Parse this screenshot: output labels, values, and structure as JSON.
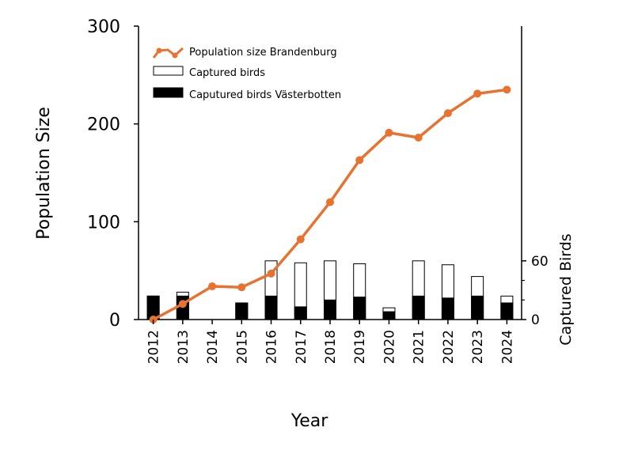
{
  "chart_data": {
    "type": "bar",
    "categories": [
      "2012",
      "2013",
      "2014",
      "2015",
      "2016",
      "2017",
      "2018",
      "2019",
      "2020",
      "2021",
      "2022",
      "2023",
      "2024"
    ],
    "line_series": {
      "name": "Population size Brandenburg",
      "axis": "left",
      "color": "#E87330",
      "values": [
        0,
        16,
        34,
        33,
        47,
        82,
        120,
        163,
        191,
        186,
        211,
        231,
        235
      ]
    },
    "bar_series": [
      {
        "name": "Captured birds",
        "axis": "right",
        "fill": "#ffffff",
        "stroke": "#000000",
        "values": [
          24,
          28,
          0,
          17,
          60,
          58,
          60,
          57,
          12,
          60,
          56,
          44,
          24
        ]
      },
      {
        "name": "Caputured birds Västerbotten",
        "axis": "right",
        "fill": "#000000",
        "stroke": "#000000",
        "values": [
          24,
          24,
          0,
          17,
          24,
          13,
          20,
          23,
          8,
          24,
          22,
          24,
          17
        ]
      }
    ],
    "xlabel": "Year",
    "ylabel": "Population Size",
    "y2label": "Captured Birds",
    "ylim": [
      0,
      300
    ],
    "yticks": [
      "0",
      "100",
      "200",
      "300"
    ],
    "y2lim": [
      0,
      300
    ],
    "y2ticks": [
      "0",
      "60"
    ],
    "legend_position": "top-left",
    "grid": false
  }
}
